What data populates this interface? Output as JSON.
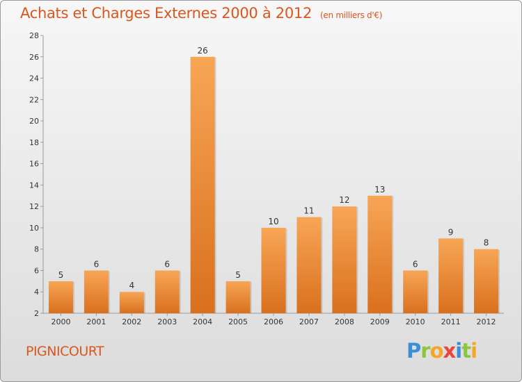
{
  "header": {
    "title": "Achats et Charges Externes 2000 à 2012",
    "subtitle": "(en milliers d'€)"
  },
  "footer": {
    "commune": "PIGNICOURT",
    "logo_letters": [
      {
        "char": "P",
        "color": "#3a8fd6"
      },
      {
        "char": "r",
        "color": "#8cc63f"
      },
      {
        "char": "o",
        "color": "#f5a623"
      },
      {
        "char": "x",
        "color": "#e8463b"
      },
      {
        "char": "i",
        "color": "#3a8fd6"
      },
      {
        "char": "t",
        "color": "#8cc63f"
      },
      {
        "char": "i",
        "color": "#f5a623"
      }
    ]
  },
  "colors": {
    "bar_light": "#f7a656",
    "bar_dark": "#d9701e",
    "accent": "#d9561e"
  },
  "chart_data": {
    "type": "bar",
    "title": "Achats et Charges Externes 2000 à 2012",
    "subtitle": "(en milliers d'€)",
    "xlabel": "",
    "ylabel": "",
    "categories": [
      "2000",
      "2001",
      "2002",
      "2003",
      "2004",
      "2005",
      "2006",
      "2007",
      "2008",
      "2009",
      "2010",
      "2011",
      "2012"
    ],
    "values": [
      5,
      6,
      4,
      6,
      26,
      5,
      10,
      11,
      12,
      13,
      6,
      9,
      8
    ],
    "ylim": [
      2,
      28
    ],
    "yticks": [
      2,
      4,
      6,
      8,
      10,
      12,
      14,
      16,
      18,
      20,
      22,
      24,
      26,
      28
    ],
    "grid": false,
    "legend": "none"
  }
}
